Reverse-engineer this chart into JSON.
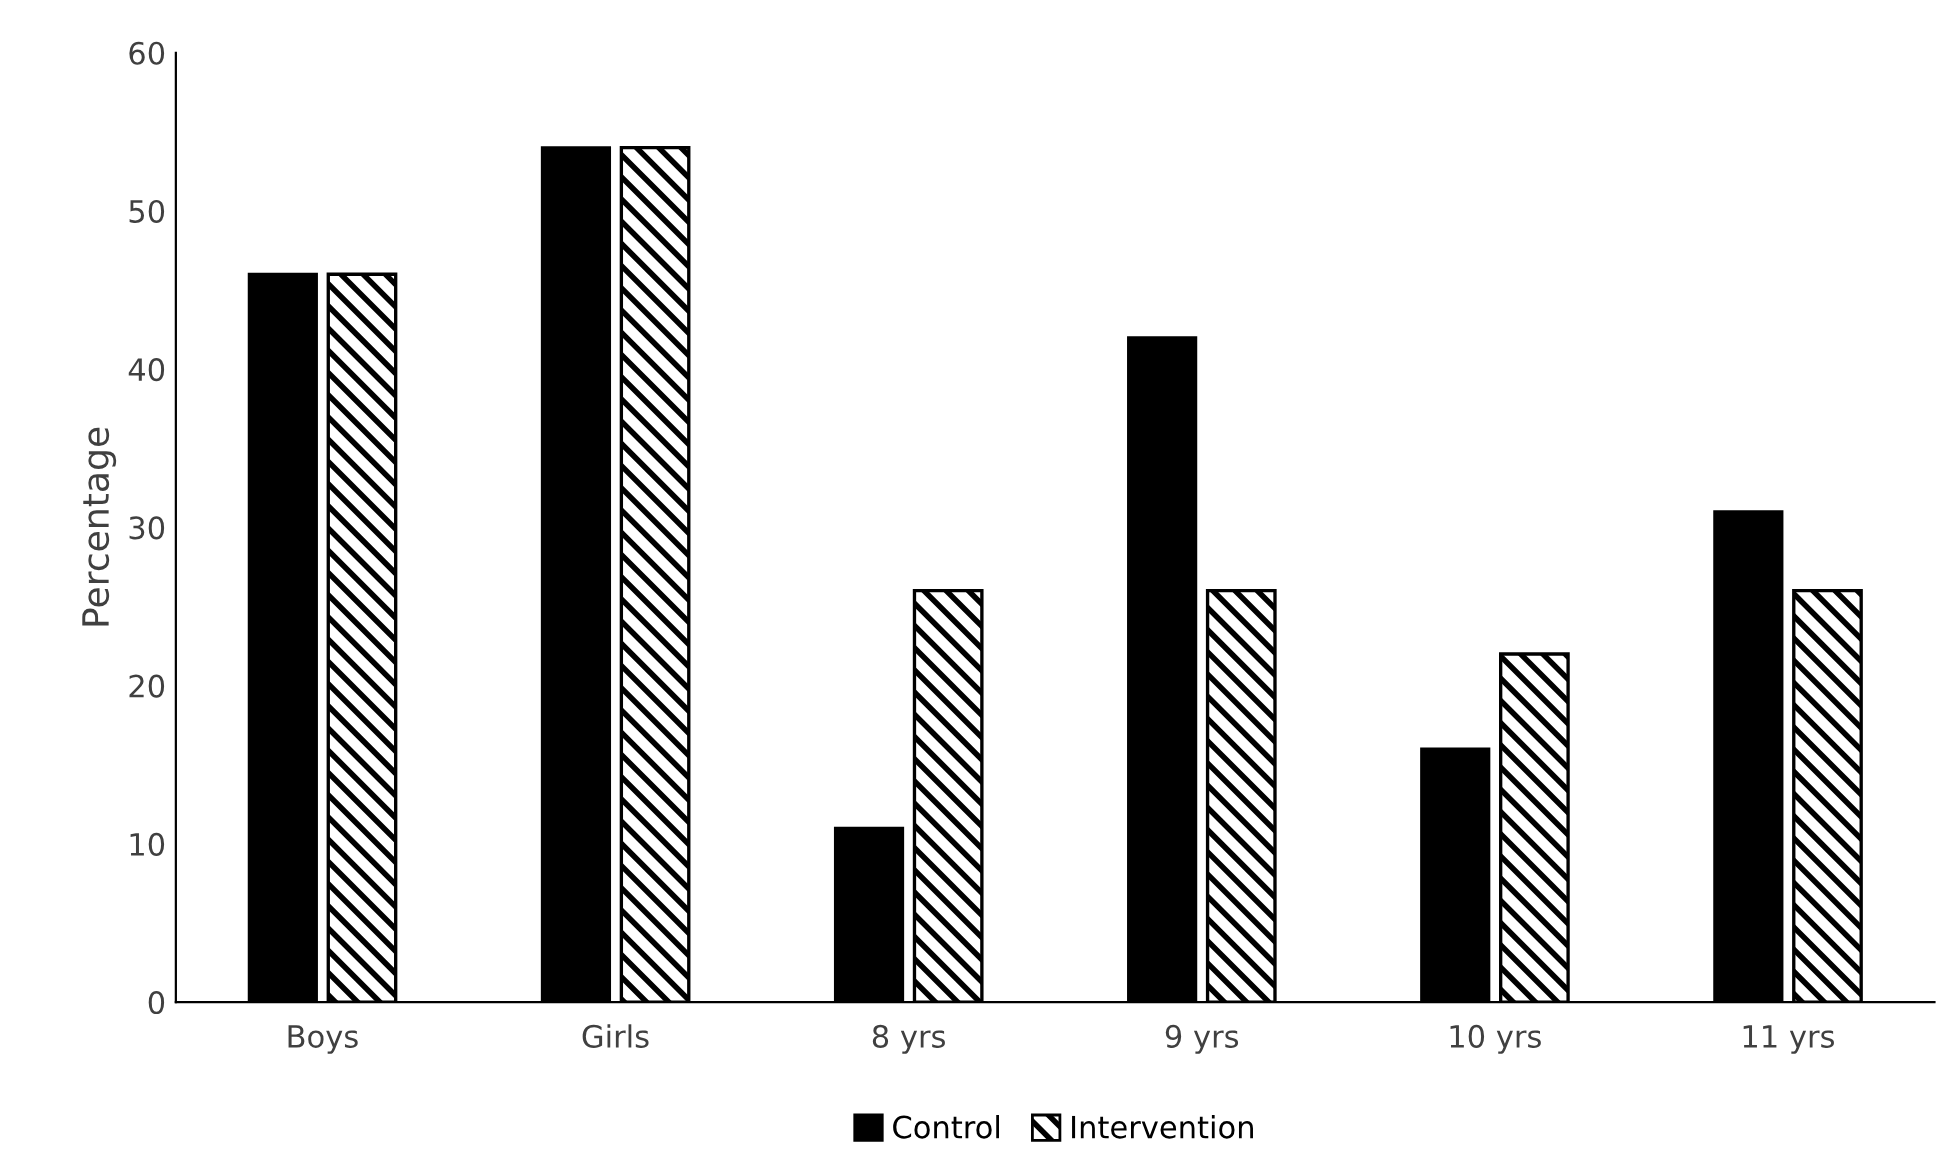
{
  "chart_data": {
    "type": "bar",
    "ylabel": "Percentage",
    "categories": [
      "Boys",
      "Girls",
      "8 yrs",
      "9 yrs",
      "10 yrs",
      "11 yrs"
    ],
    "series": [
      {
        "name": "Control",
        "color": "#000000",
        "values": [
          46,
          54,
          11,
          42,
          16,
          31
        ]
      },
      {
        "name": "Intervention",
        "color": "#000000",
        "values": [
          46,
          54,
          26,
          26,
          22,
          26
        ]
      }
    ],
    "ylim": [
      0,
      60
    ],
    "yticks": [
      0,
      10,
      20,
      30,
      40,
      50,
      60
    ],
    "grid": false,
    "legend": "bottom"
  }
}
